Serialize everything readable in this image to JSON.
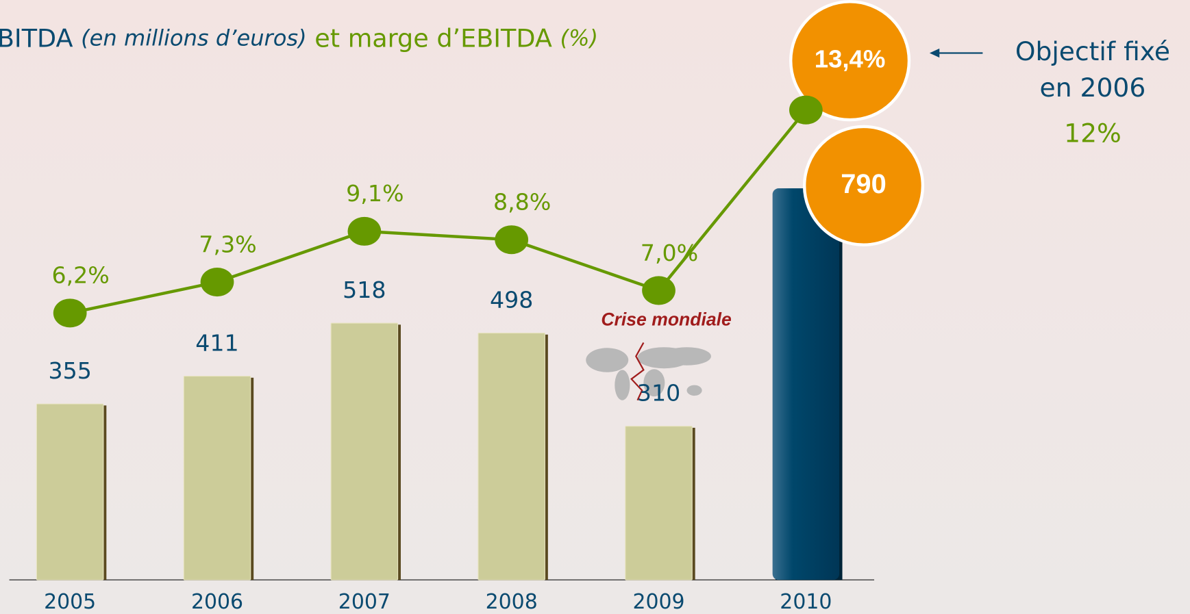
{
  "chart_data": {
    "type": "bar",
    "title": "BITDA",
    "title_unit": "(en millions d’euros)",
    "title2": "et marge d’EBITDA",
    "title2_unit": "(%)",
    "categories": [
      "2005",
      "2006",
      "2007",
      "2008",
      "2009",
      "2010"
    ],
    "ylim": [
      0,
      1170
    ],
    "y2lim": [
      -3.26,
      17.3
    ],
    "series": [
      {
        "type": "bar",
        "values": [
          355,
          411,
          518,
          498,
          310,
          790
        ],
        "colors": [
          "#cccc99",
          "#cccc99",
          "#cccc99",
          "#cccc99",
          "#cccc99",
          "#00476b"
        ]
      },
      {
        "type": "line",
        "axis": "y2",
        "color": "#669900",
        "values": [
          6.2,
          7.3,
          9.1,
          8.8,
          7.0,
          13.4
        ],
        "value_labels": [
          "6,2%",
          "7,3%",
          "9,1%",
          "8,8%",
          "7,0%",
          "13,4%"
        ]
      }
    ],
    "highlight_color": "#f29100",
    "target_text": [
      "Objectif fixé",
      "en 2006"
    ],
    "target": {
      "value": 12,
      "label": "12%"
    },
    "annotation": "Crise mondiale"
  }
}
